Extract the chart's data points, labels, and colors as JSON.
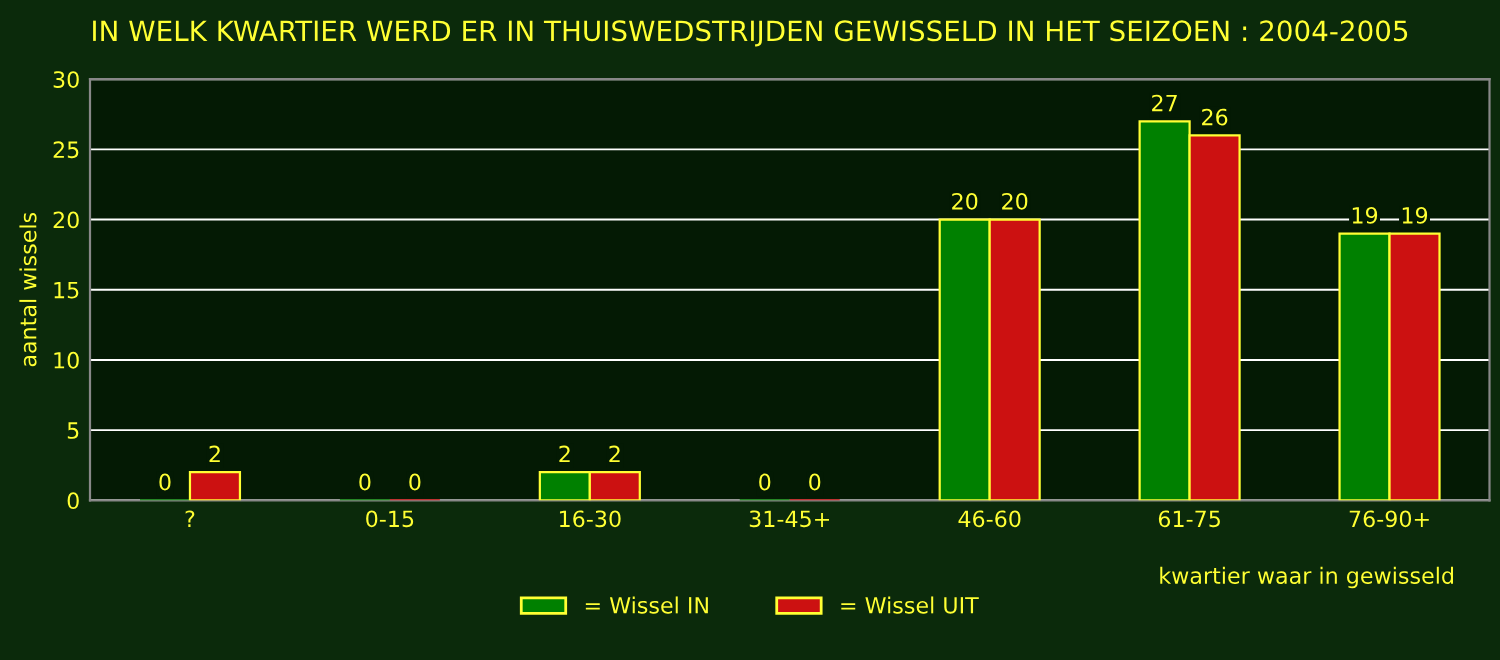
{
  "chart_data": {
    "type": "bar",
    "title": "IN WELK KWARTIER WERD ER IN THUISWEDSTRIJDEN GEWISSELD IN HET SEIZOEN : 2004-2005",
    "xlabel": "kwartier waar in gewisseld",
    "ylabel": "aantal wissels",
    "categories": [
      "?",
      "0-15",
      "16-30",
      "31-45+",
      "46-60",
      "61-75",
      "76-90+"
    ],
    "series": [
      {
        "name": "= Wissel IN",
        "color": "#008000",
        "values": [
          0,
          0,
          2,
          0,
          20,
          27,
          19
        ]
      },
      {
        "name": "= Wissel UIT",
        "color": "#cc1111",
        "values": [
          2,
          0,
          2,
          0,
          20,
          26,
          19
        ]
      }
    ],
    "ylim": [
      0,
      30
    ],
    "yticks": [
      0,
      5,
      10,
      15,
      20,
      25,
      30
    ],
    "grid": "y",
    "legend": "bottom",
    "data_labels": true
  }
}
